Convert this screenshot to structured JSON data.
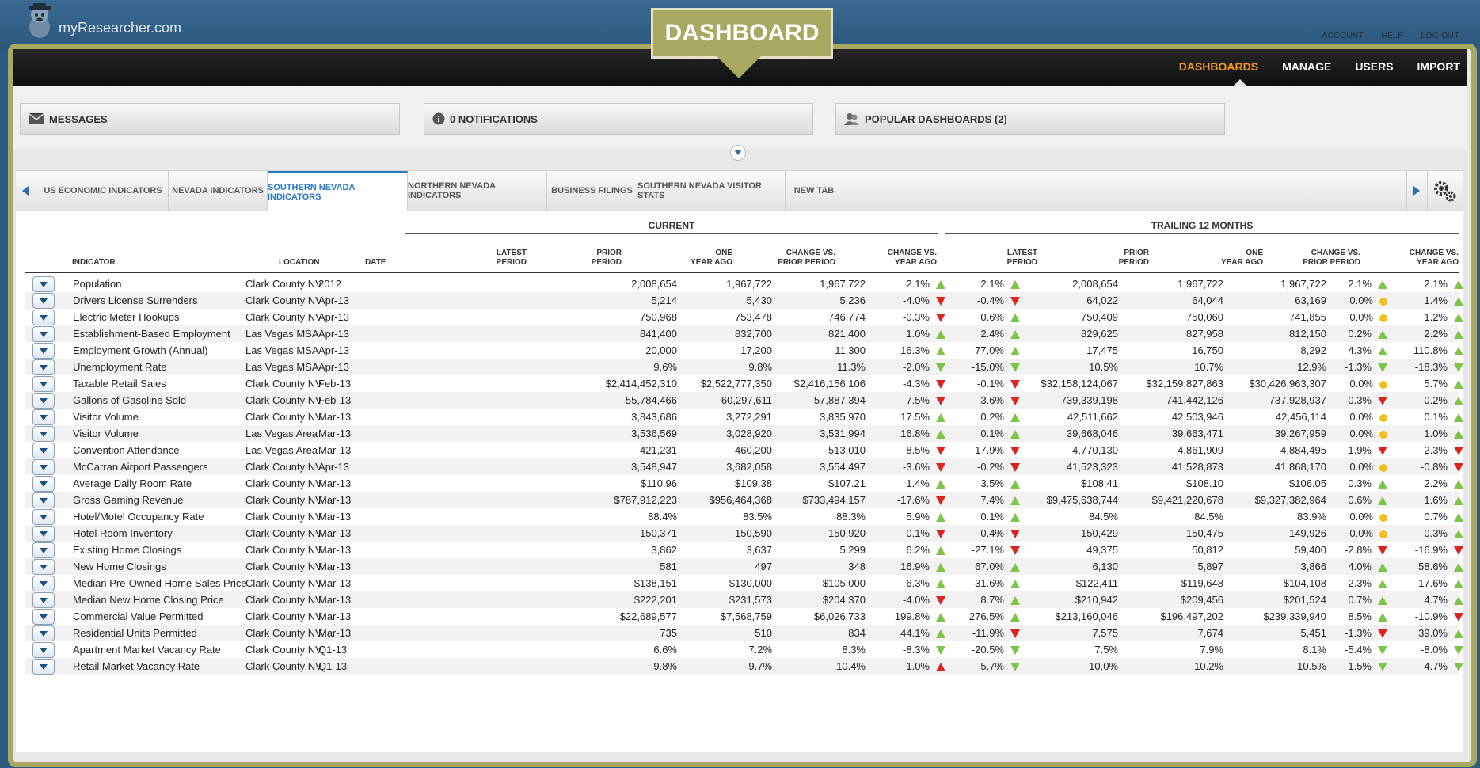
{
  "brand": {
    "name": "myResearcher.com"
  },
  "top_links": [
    "ACCOUNT",
    "HELP",
    "LOG OUT"
  ],
  "badge": "DASHBOARD",
  "nav": [
    {
      "label": "DASHBOARDS",
      "active": true
    },
    {
      "label": "MANAGE",
      "active": false
    },
    {
      "label": "USERS",
      "active": false
    },
    {
      "label": "IMPORT",
      "active": false
    }
  ],
  "panels": {
    "messages": "MESSAGES",
    "notifications": "0 NOTIFICATIONS",
    "popular": "POPULAR DASHBOARDS (2)"
  },
  "tabs": [
    {
      "label": "US ECONOMIC INDICATORS",
      "active": false
    },
    {
      "label": "NEVADA INDICATORS",
      "active": false
    },
    {
      "label": "SOUTHERN NEVADA INDICATORS",
      "active": true
    },
    {
      "label": "NORTHERN NEVADA INDICATORS",
      "active": false
    },
    {
      "label": "BUSINESS FILINGS",
      "active": false
    },
    {
      "label": "SOUTHERN NEVADA VISITOR STATS",
      "active": false
    },
    {
      "label": "NEW TAB",
      "active": false
    }
  ],
  "table": {
    "group_current": "CURRENT",
    "group_trailing": "TRAILING 12 MONTHS",
    "headers": {
      "indicator": "INDICATOR",
      "location": "LOCATION",
      "date": "DATE",
      "latest": [
        "LATEST",
        "PERIOD"
      ],
      "prior": [
        "PRIOR",
        "PERIOD"
      ],
      "one_year": [
        "ONE",
        "YEAR AGO"
      ],
      "chg_prior": [
        "CHANGE VS.",
        "PRIOR PERIOD"
      ],
      "chg_year": [
        "CHANGE VS.",
        "YEAR AGO"
      ]
    },
    "rows": [
      [
        "Population",
        "Clark County NV",
        "2012",
        "2,008,654",
        "1,967,722",
        "1,967,722",
        "2.1%",
        "up",
        "2.1%",
        "up",
        "2,008,654",
        "1,967,722",
        "1,967,722",
        "2.1%",
        "up",
        "2.1%",
        "up"
      ],
      [
        "Drivers License Surrenders",
        "Clark County NV",
        "Apr-13",
        "5,214",
        "5,430",
        "5,236",
        "-4.0%",
        "down-r",
        "-0.4%",
        "down-r",
        "64,022",
        "64,044",
        "63,169",
        "0.0%",
        "dot",
        "1.4%",
        "up"
      ],
      [
        "Electric Meter Hookups",
        "Clark County NV",
        "Apr-13",
        "750,968",
        "753,478",
        "746,774",
        "-0.3%",
        "down-r",
        "0.6%",
        "up",
        "750,409",
        "750,060",
        "741,855",
        "0.0%",
        "dot",
        "1.2%",
        "up"
      ],
      [
        "Establishment-Based Employment",
        "Las Vegas MSA",
        "Apr-13",
        "841,400",
        "832,700",
        "821,400",
        "1.0%",
        "up",
        "2.4%",
        "up",
        "829,625",
        "827,958",
        "812,150",
        "0.2%",
        "up",
        "2.2%",
        "up"
      ],
      [
        "Employment Growth (Annual)",
        "Las Vegas MSA",
        "Apr-13",
        "20,000",
        "17,200",
        "11,300",
        "16.3%",
        "up",
        "77.0%",
        "up",
        "17,475",
        "16,750",
        "8,292",
        "4.3%",
        "up",
        "110.8%",
        "up"
      ],
      [
        "Unemployment Rate",
        "Las Vegas MSA",
        "Apr-13",
        "9.6%",
        "9.8%",
        "11.3%",
        "-2.0%",
        "down-g",
        "-15.0%",
        "down-g",
        "10.5%",
        "10.7%",
        "12.9%",
        "-1.3%",
        "down-g",
        "-18.3%",
        "down-g"
      ],
      [
        "Taxable Retail Sales",
        "Clark County NV",
        "Feb-13",
        "$2,414,452,310",
        "$2,522,777,350",
        "$2,416,156,106",
        "-4.3%",
        "down-r",
        "-0.1%",
        "down-r",
        "$32,158,124,067",
        "$32,159,827,863",
        "$30,426,963,307",
        "0.0%",
        "dot",
        "5.7%",
        "up"
      ],
      [
        "Gallons of Gasoline Sold",
        "Clark County NV",
        "Feb-13",
        "55,784,466",
        "60,297,611",
        "57,887,394",
        "-7.5%",
        "down-r",
        "-3.6%",
        "down-r",
        "739,339,198",
        "741,442,126",
        "737,928,937",
        "-0.3%",
        "down-r",
        "0.2%",
        "up"
      ],
      [
        "Visitor Volume",
        "Clark County NV",
        "Mar-13",
        "3,843,686",
        "3,272,291",
        "3,835,970",
        "17.5%",
        "up",
        "0.2%",
        "up",
        "42,511,662",
        "42,503,946",
        "42,456,114",
        "0.0%",
        "dot",
        "0.1%",
        "up"
      ],
      [
        "Visitor Volume",
        "Las Vegas Area",
        "Mar-13",
        "3,536,569",
        "3,028,920",
        "3,531,994",
        "16.8%",
        "up",
        "0.1%",
        "up",
        "39,668,046",
        "39,663,471",
        "39,267,959",
        "0.0%",
        "dot",
        "1.0%",
        "up"
      ],
      [
        "Convention Attendance",
        "Las Vegas Area",
        "Mar-13",
        "421,231",
        "460,200",
        "513,010",
        "-8.5%",
        "down-r",
        "-17.9%",
        "down-r",
        "4,770,130",
        "4,861,909",
        "4,884,495",
        "-1.9%",
        "down-r",
        "-2.3%",
        "down-r"
      ],
      [
        "McCarran Airport Passengers",
        "Clark County NV",
        "Apr-13",
        "3,548,947",
        "3,682,058",
        "3,554,497",
        "-3.6%",
        "down-r",
        "-0.2%",
        "down-r",
        "41,523,323",
        "41,528,873",
        "41,868,170",
        "0.0%",
        "dot",
        "-0.8%",
        "down-r"
      ],
      [
        "Average Daily Room Rate",
        "Clark County NV",
        "Mar-13",
        "$110.96",
        "$109.38",
        "$107.21",
        "1.4%",
        "up",
        "3.5%",
        "up",
        "$108.41",
        "$108.10",
        "$106.05",
        "0.3%",
        "up",
        "2.2%",
        "up"
      ],
      [
        "Gross Gaming Revenue",
        "Clark County NV",
        "Mar-13",
        "$787,912,223",
        "$956,464,368",
        "$733,494,157",
        "-17.6%",
        "down-r",
        "7.4%",
        "up",
        "$9,475,638,744",
        "$9,421,220,678",
        "$9,327,382,964",
        "0.6%",
        "up",
        "1.6%",
        "up"
      ],
      [
        "Hotel/Motel Occupancy Rate",
        "Clark County NV",
        "Mar-13",
        "88.4%",
        "83.5%",
        "88.3%",
        "5.9%",
        "up",
        "0.1%",
        "up",
        "84.5%",
        "84.5%",
        "83.9%",
        "0.0%",
        "dot",
        "0.7%",
        "up"
      ],
      [
        "Hotel Room Inventory",
        "Clark County NV",
        "Mar-13",
        "150,371",
        "150,590",
        "150,920",
        "-0.1%",
        "down-r",
        "-0.4%",
        "down-r",
        "150,429",
        "150,475",
        "149,926",
        "0.0%",
        "dot",
        "0.3%",
        "up"
      ],
      [
        "Existing Home Closings",
        "Clark County NV",
        "Mar-13",
        "3,862",
        "3,637",
        "5,299",
        "6.2%",
        "up",
        "-27.1%",
        "down-r",
        "49,375",
        "50,812",
        "59,400",
        "-2.8%",
        "down-r",
        "-16.9%",
        "down-r"
      ],
      [
        "New Home Closings",
        "Clark County NV",
        "Mar-13",
        "581",
        "497",
        "348",
        "16.9%",
        "up",
        "67.0%",
        "up",
        "6,130",
        "5,897",
        "3,866",
        "4.0%",
        "up",
        "58.6%",
        "up"
      ],
      [
        "Median Pre-Owned Home Sales Price",
        "Clark County NV",
        "Mar-13",
        "$138,151",
        "$130,000",
        "$105,000",
        "6.3%",
        "up",
        "31.6%",
        "up",
        "$122,411",
        "$119,648",
        "$104,108",
        "2.3%",
        "up",
        "17.6%",
        "up"
      ],
      [
        "Median New Home Closing Price",
        "Clark County NV",
        "Mar-13",
        "$222,201",
        "$231,573",
        "$204,370",
        "-4.0%",
        "down-r",
        "8.7%",
        "up",
        "$210,942",
        "$209,456",
        "$201,524",
        "0.7%",
        "up",
        "4.7%",
        "up"
      ],
      [
        "Commercial Value Permitted",
        "Clark County NV",
        "Mar-13",
        "$22,689,577",
        "$7,568,759",
        "$6,026,733",
        "199.8%",
        "up",
        "276.5%",
        "up",
        "$213,160,046",
        "$196,497,202",
        "$239,339,940",
        "8.5%",
        "up",
        "-10.9%",
        "down-r"
      ],
      [
        "Residential Units Permitted",
        "Clark County NV",
        "Mar-13",
        "735",
        "510",
        "834",
        "44.1%",
        "up",
        "-11.9%",
        "down-r",
        "7,575",
        "7,674",
        "5,451",
        "-1.3%",
        "down-r",
        "39.0%",
        "up"
      ],
      [
        "Apartment Market Vacancy Rate",
        "Clark County NV",
        "Q1-13",
        "6.6%",
        "7.2%",
        "8.3%",
        "-8.3%",
        "down-g",
        "-20.5%",
        "down-g",
        "7.5%",
        "7.9%",
        "8.1%",
        "-5.4%",
        "down-g",
        "-8.0%",
        "down-g"
      ],
      [
        "Retail Market Vacancy Rate",
        "Clark County NV",
        "Q1-13",
        "9.8%",
        "9.7%",
        "10.4%",
        "1.0%",
        "up-r",
        "-5.7%",
        "down-g",
        "10.0%",
        "10.2%",
        "10.5%",
        "-1.5%",
        "down-g",
        "-4.7%",
        "down-g"
      ]
    ]
  }
}
